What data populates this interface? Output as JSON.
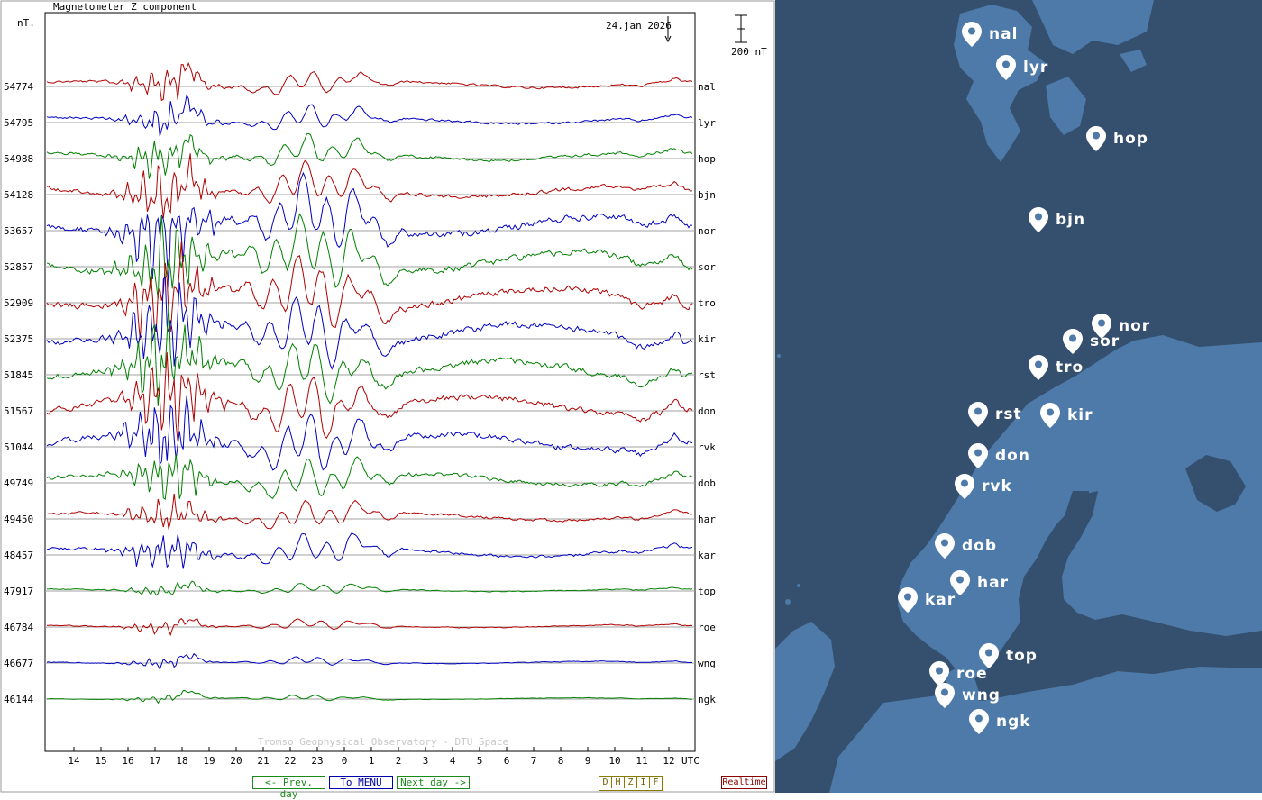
{
  "chart_data": {
    "type": "line",
    "title": "Magnetometer Z component",
    "date_label": "24.jan 2026",
    "y_unit": "nT.",
    "scale_bar_label": "200 nT",
    "scale_bar_nT": 200,
    "x_axis_unit": "UTC",
    "x_ticks": [
      "14",
      "15",
      "16",
      "17",
      "18",
      "19",
      "20",
      "21",
      "22",
      "23",
      "0",
      "1",
      "2",
      "3",
      "4",
      "5",
      "6",
      "7",
      "8",
      "9",
      "10",
      "11",
      "12"
    ],
    "x_range_hours": [
      13.2,
      13.0
    ],
    "credit": "Tromso Geophysical Observatory - DTU Space",
    "series": [
      {
        "station": "nal",
        "baseline": "54774",
        "color": "#b00000",
        "amplitude": 0.35
      },
      {
        "station": "lyr",
        "baseline": "54795",
        "color": "#0000c0",
        "amplitude": 0.35
      },
      {
        "station": "hop",
        "baseline": "54988",
        "color": "#008000",
        "amplitude": 0.45
      },
      {
        "station": "bjn",
        "baseline": "54128",
        "color": "#b00000",
        "amplitude": 0.6
      },
      {
        "station": "nor",
        "baseline": "53657",
        "color": "#0000c0",
        "amplitude": 1.0
      },
      {
        "station": "sor",
        "baseline": "52857",
        "color": "#008000",
        "amplitude": 1.0
      },
      {
        "station": "tro",
        "baseline": "52909",
        "color": "#b00000",
        "amplitude": 1.0
      },
      {
        "station": "kir",
        "baseline": "52375",
        "color": "#0000c0",
        "amplitude": 1.0
      },
      {
        "station": "rst",
        "baseline": "51845",
        "color": "#008000",
        "amplitude": 0.95
      },
      {
        "station": "don",
        "baseline": "51567",
        "color": "#b00000",
        "amplitude": 0.95
      },
      {
        "station": "rvk",
        "baseline": "51044",
        "color": "#0000c0",
        "amplitude": 0.9
      },
      {
        "station": "dob",
        "baseline": "49749",
        "color": "#008000",
        "amplitude": 0.6
      },
      {
        "station": "har",
        "baseline": "49450",
        "color": "#b00000",
        "amplitude": 0.4
      },
      {
        "station": "kar",
        "baseline": "48457",
        "color": "#0000c0",
        "amplitude": 0.45
      },
      {
        "station": "top",
        "baseline": "47917",
        "color": "#008000",
        "amplitude": 0.15
      },
      {
        "station": "roe",
        "baseline": "46784",
        "color": "#b00000",
        "amplitude": 0.15
      },
      {
        "station": "wng",
        "baseline": "46677",
        "color": "#0000c0",
        "amplitude": 0.12
      },
      {
        "station": "ngk",
        "baseline": "46144",
        "color": "#008000",
        "amplitude": 0.08
      }
    ]
  },
  "nav": {
    "prev_day": "<- Prev. day",
    "menu": "To MENU",
    "next_day": "Next day ->",
    "components": [
      "D",
      "H",
      "Z",
      "I",
      "F"
    ],
    "realtime": "Realtime"
  },
  "map": {
    "land_color": "#4d7aa8",
    "sea_color": "#35506e",
    "stations": [
      {
        "name": "nal"
      },
      {
        "name": "lyr"
      },
      {
        "name": "hop"
      },
      {
        "name": "bjn"
      },
      {
        "name": "nor"
      },
      {
        "name": "sor"
      },
      {
        "name": "tro"
      },
      {
        "name": "rst"
      },
      {
        "name": "kir"
      },
      {
        "name": "don"
      },
      {
        "name": "rvk"
      },
      {
        "name": "dob"
      },
      {
        "name": "har"
      },
      {
        "name": "kar"
      },
      {
        "name": "top"
      },
      {
        "name": "roe"
      },
      {
        "name": "wng"
      },
      {
        "name": "ngk"
      }
    ]
  }
}
